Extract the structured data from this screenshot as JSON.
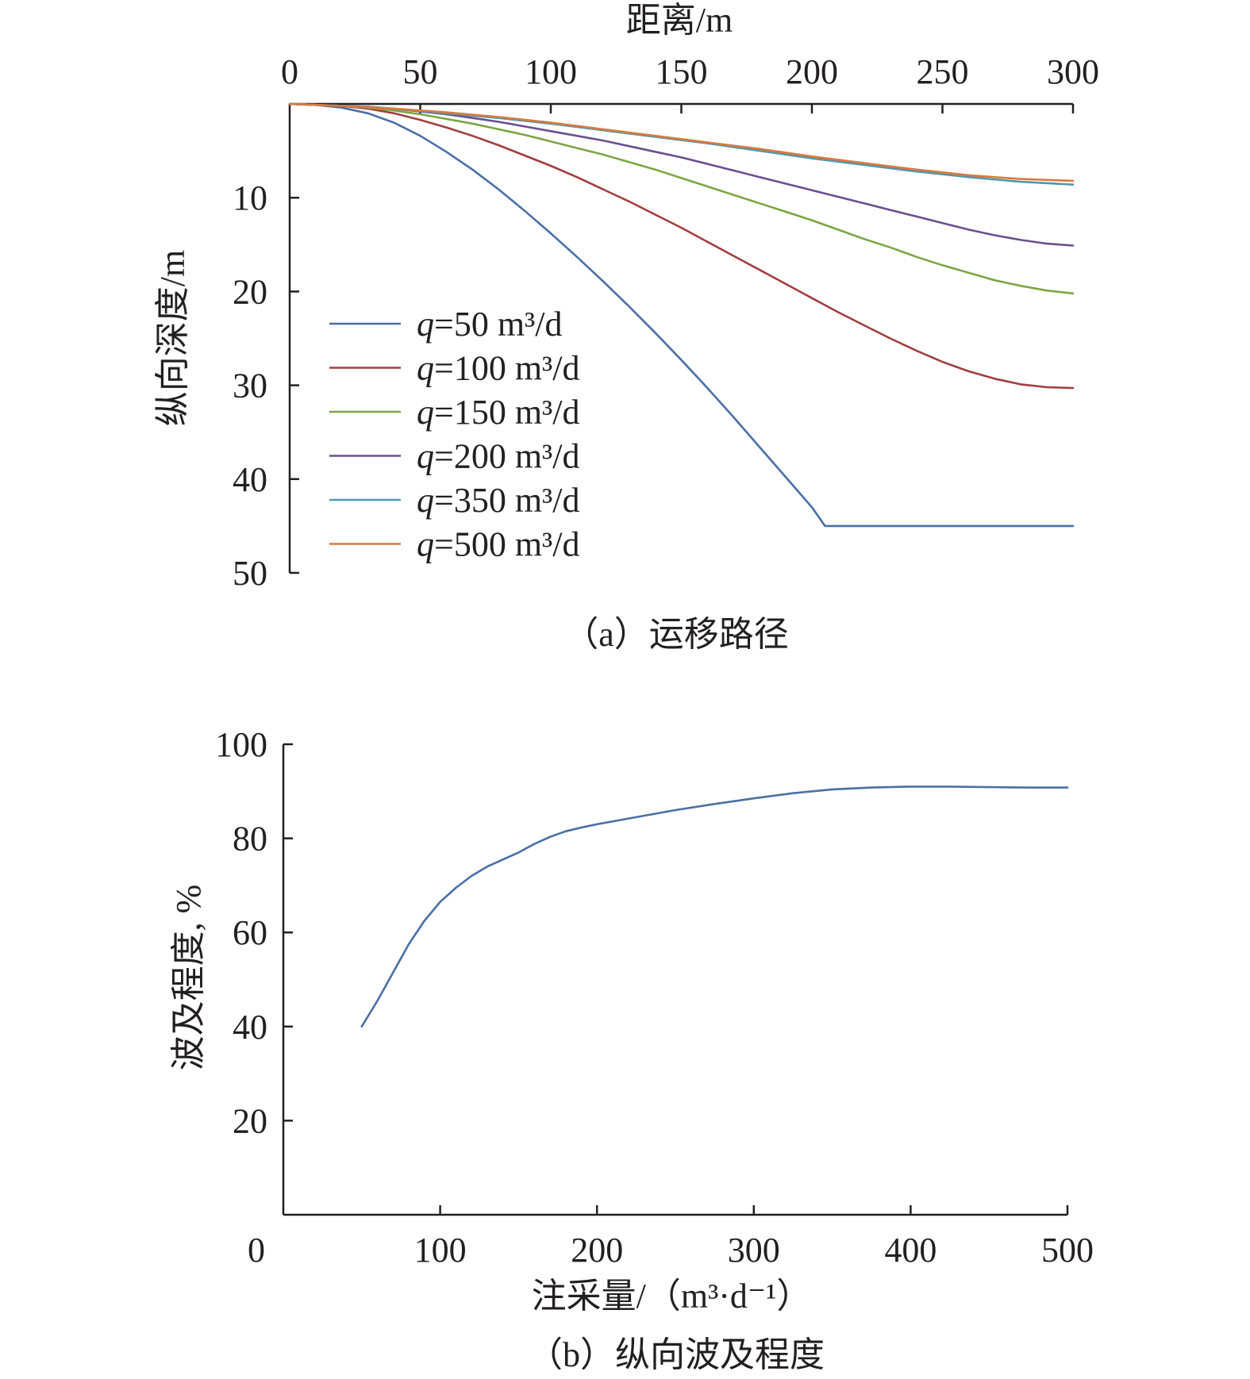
{
  "chart_data": [
    {
      "type": "line",
      "caption": "（a）运移路径",
      "xlabel": "距离/m",
      "ylabel": "纵向深度/m",
      "x_axis_position": "top",
      "y_inverted": true,
      "xlim": [
        0,
        300
      ],
      "ylim": [
        0,
        50
      ],
      "x_ticks": [
        "0",
        "50",
        "100",
        "150",
        "200",
        "250",
        "300"
      ],
      "y_ticks": [
        "10",
        "20",
        "30",
        "40",
        "50"
      ],
      "grid": false,
      "legend_position": "center-left",
      "series": [
        {
          "name_prefix": "q",
          "name": "=50 m³/d",
          "color": "#4a6fa5",
          "x": [
            0,
            10,
            20,
            30,
            40,
            50,
            60,
            70,
            80,
            90,
            100,
            110,
            120,
            130,
            140,
            150,
            160,
            170,
            180,
            190,
            200,
            205,
            210,
            220,
            240,
            260,
            280,
            300
          ],
          "y": [
            0,
            0.1,
            0.4,
            1.0,
            2.0,
            3.4,
            5.1,
            7.0,
            9.1,
            11.4,
            13.8,
            16.3,
            18.9,
            21.6,
            24.4,
            27.3,
            30.3,
            33.4,
            36.6,
            39.8,
            43.0,
            45.0,
            45.0,
            45.0,
            45.0,
            45.0,
            45.0,
            45.0
          ]
        },
        {
          "name_prefix": "q",
          "name": "=100 m³/d",
          "color": "#a13e41",
          "x": [
            0,
            10,
            20,
            30,
            40,
            50,
            60,
            70,
            80,
            90,
            100,
            110,
            120,
            130,
            140,
            150,
            160,
            170,
            180,
            190,
            200,
            210,
            220,
            230,
            240,
            250,
            260,
            270,
            280,
            290,
            300
          ],
          "y": [
            0,
            0.1,
            0.2,
            0.5,
            1.0,
            1.7,
            2.5,
            3.4,
            4.4,
            5.5,
            6.6,
            7.8,
            9.1,
            10.4,
            11.8,
            13.2,
            14.7,
            16.2,
            17.7,
            19.2,
            20.7,
            22.2,
            23.6,
            25.0,
            26.3,
            27.5,
            28.5,
            29.3,
            29.9,
            30.2,
            30.3
          ]
        },
        {
          "name_prefix": "q",
          "name": "=150 m³/d",
          "color": "#7ca544",
          "x": [
            0,
            10,
            20,
            30,
            40,
            50,
            60,
            70,
            80,
            90,
            100,
            110,
            120,
            130,
            140,
            150,
            160,
            170,
            180,
            190,
            200,
            210,
            220,
            230,
            240,
            250,
            260,
            270,
            280,
            290,
            300
          ],
          "y": [
            0,
            0.1,
            0.2,
            0.4,
            0.7,
            1.1,
            1.6,
            2.1,
            2.7,
            3.3,
            4.0,
            4.7,
            5.4,
            6.2,
            7.0,
            7.9,
            8.8,
            9.7,
            10.6,
            11.5,
            12.4,
            13.4,
            14.4,
            15.3,
            16.3,
            17.2,
            18.0,
            18.8,
            19.4,
            19.9,
            20.2
          ]
        },
        {
          "name_prefix": "q",
          "name": "=200 m³/d",
          "color": "#6a4f8f",
          "x": [
            0,
            10,
            20,
            30,
            40,
            50,
            60,
            70,
            80,
            90,
            100,
            110,
            120,
            130,
            140,
            150,
            160,
            170,
            180,
            190,
            200,
            210,
            220,
            230,
            240,
            250,
            260,
            270,
            280,
            290,
            300
          ],
          "y": [
            0,
            0.1,
            0.2,
            0.3,
            0.5,
            0.8,
            1.1,
            1.5,
            1.9,
            2.4,
            2.9,
            3.4,
            3.9,
            4.5,
            5.1,
            5.7,
            6.4,
            7.1,
            7.8,
            8.5,
            9.2,
            9.9,
            10.6,
            11.3,
            12.0,
            12.7,
            13.4,
            14.0,
            14.5,
            14.9,
            15.1
          ]
        },
        {
          "name_prefix": "q",
          "name": "=350 m³/d",
          "color": "#4f97aa",
          "x": [
            0,
            20,
            40,
            60,
            80,
            100,
            120,
            140,
            160,
            180,
            200,
            220,
            240,
            260,
            280,
            300
          ],
          "y": [
            0,
            0.2,
            0.5,
            1.0,
            1.5,
            2.1,
            2.8,
            3.5,
            4.2,
            5.0,
            5.8,
            6.5,
            7.2,
            7.8,
            8.3,
            8.6
          ]
        },
        {
          "name_prefix": "q",
          "name": "=500 m³/d",
          "color": "#d97a3e",
          "x": [
            0,
            20,
            40,
            60,
            80,
            100,
            120,
            140,
            160,
            180,
            200,
            220,
            240,
            260,
            280,
            300
          ],
          "y": [
            0,
            0.2,
            0.5,
            0.9,
            1.4,
            2.0,
            2.7,
            3.4,
            4.1,
            4.8,
            5.6,
            6.3,
            7.0,
            7.6,
            8.0,
            8.2
          ]
        }
      ]
    },
    {
      "type": "line",
      "caption": "（b）纵向波及程度",
      "xlabel": "注采量/（m³·d⁻¹）",
      "ylabel": "波及程度, %",
      "xlim": [
        0,
        500
      ],
      "ylim": [
        0,
        100
      ],
      "x_ticks": [
        "0",
        "100",
        "200",
        "300",
        "400",
        "500"
      ],
      "y_ticks": [
        "20",
        "40",
        "60",
        "80",
        "100"
      ],
      "grid": false,
      "series": [
        {
          "color": "#4a6fa5",
          "x": [
            50,
            60,
            70,
            80,
            90,
            100,
            110,
            120,
            130,
            140,
            150,
            160,
            170,
            180,
            190,
            200,
            225,
            250,
            275,
            300,
            325,
            350,
            375,
            400,
            425,
            450,
            475,
            500
          ],
          "y": [
            40,
            45.5,
            51.5,
            57.5,
            62.5,
            66.5,
            69.5,
            72,
            74,
            75.5,
            77,
            78.8,
            80.3,
            81.5,
            82.3,
            83,
            84.5,
            86,
            87.3,
            88.5,
            89.6,
            90.4,
            90.8,
            91,
            91,
            90.9,
            90.8,
            90.8
          ]
        }
      ]
    }
  ]
}
